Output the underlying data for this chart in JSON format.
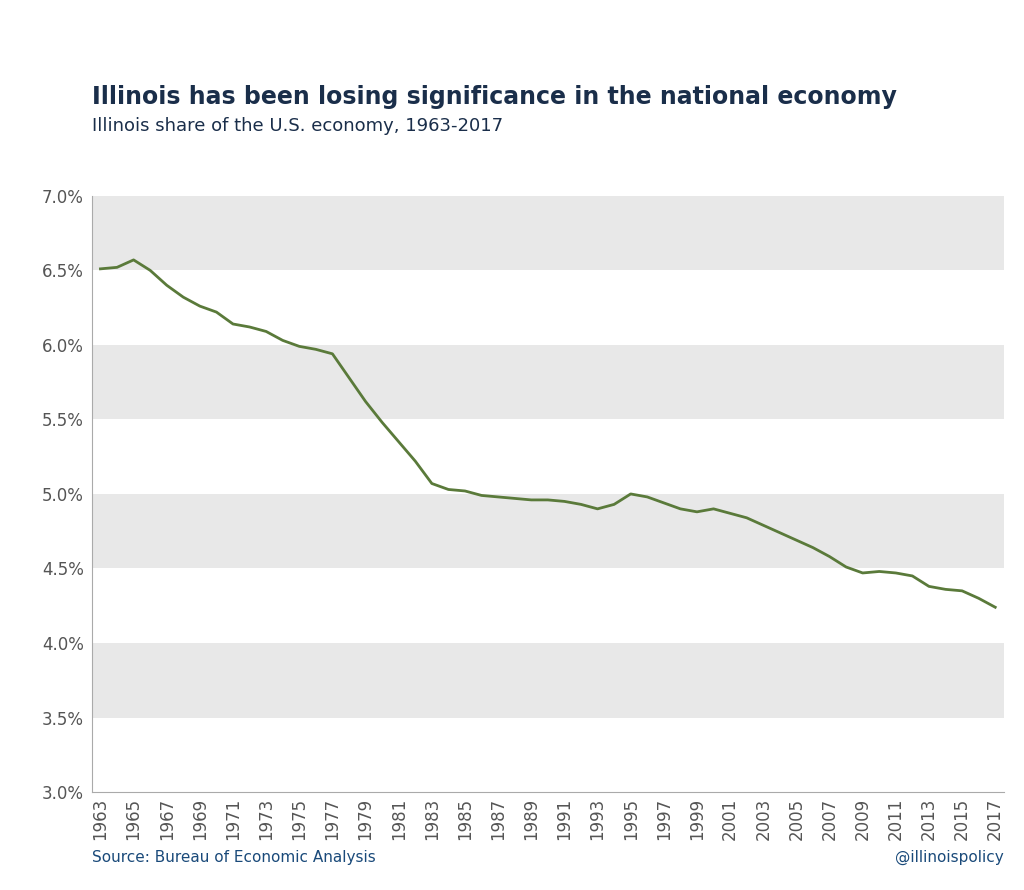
{
  "title": "Illinois has been losing significance in the national economy",
  "subtitle": "Illinois share of the U.S. economy, 1963-2017",
  "source": "Source: Bureau of Economic Analysis",
  "watermark": "@illinoispolicy",
  "years": [
    1963,
    1964,
    1965,
    1966,
    1967,
    1968,
    1969,
    1970,
    1971,
    1972,
    1973,
    1974,
    1975,
    1976,
    1977,
    1978,
    1979,
    1980,
    1981,
    1982,
    1983,
    1984,
    1985,
    1986,
    1987,
    1988,
    1989,
    1990,
    1991,
    1992,
    1993,
    1994,
    1995,
    1996,
    1997,
    1998,
    1999,
    2000,
    2001,
    2002,
    2003,
    2004,
    2005,
    2006,
    2007,
    2008,
    2009,
    2010,
    2011,
    2012,
    2013,
    2014,
    2015,
    2016,
    2017
  ],
  "values": [
    0.0651,
    0.0652,
    0.0657,
    0.065,
    0.064,
    0.0632,
    0.0626,
    0.0622,
    0.0614,
    0.0612,
    0.0609,
    0.0603,
    0.0599,
    0.0597,
    0.0594,
    0.0578,
    0.0562,
    0.0548,
    0.0535,
    0.0522,
    0.0507,
    0.0503,
    0.0502,
    0.0499,
    0.0498,
    0.0497,
    0.0496,
    0.0496,
    0.0495,
    0.0493,
    0.049,
    0.0493,
    0.05,
    0.0498,
    0.0494,
    0.049,
    0.0488,
    0.049,
    0.0487,
    0.0484,
    0.0479,
    0.0474,
    0.0469,
    0.0464,
    0.0458,
    0.0451,
    0.0447,
    0.0448,
    0.0447,
    0.0445,
    0.0438,
    0.0436,
    0.0435,
    0.043,
    0.0424
  ],
  "line_color": "#5a7a3a",
  "line_width": 2.0,
  "background_color": "#ffffff",
  "band_color": "#e8e8e8",
  "ylim": [
    0.03,
    0.07
  ],
  "yticks": [
    0.03,
    0.035,
    0.04,
    0.045,
    0.05,
    0.055,
    0.06,
    0.065,
    0.07
  ],
  "title_color": "#1a2e4a",
  "subtitle_color": "#1a2e4a",
  "source_color": "#1a4a7a",
  "watermark_color": "#1a4a7a",
  "title_fontsize": 17,
  "subtitle_fontsize": 13,
  "source_fontsize": 11,
  "watermark_fontsize": 11,
  "tick_label_color": "#555555",
  "tick_fontsize": 12,
  "axes_color": "#aaaaaa"
}
